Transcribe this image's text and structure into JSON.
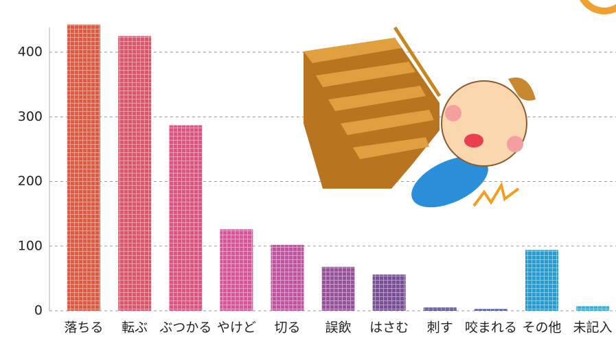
{
  "chart_data": {
    "type": "bar",
    "categories": [
      "落ちる",
      "転ぶ",
      "ぶつかる",
      "やけど",
      "切る",
      "誤飲",
      "はさむ",
      "刺す",
      "咬まれる",
      "その他",
      "未記入"
    ],
    "values": [
      443,
      425,
      287,
      126,
      102,
      68,
      56,
      5,
      3,
      94,
      7
    ],
    "colors": [
      "#e8553a",
      "#e8506a",
      "#e84f80",
      "#e04f98",
      "#c84fa3",
      "#9c4f9f",
      "#7b4b9c",
      "#5c4a9c",
      "#4a5ba8",
      "#1c9fd8",
      "#2bb1e2"
    ],
    "ylim": [
      0,
      450
    ],
    "yticks": [
      0,
      100,
      200,
      300,
      400
    ],
    "grid": true
  }
}
